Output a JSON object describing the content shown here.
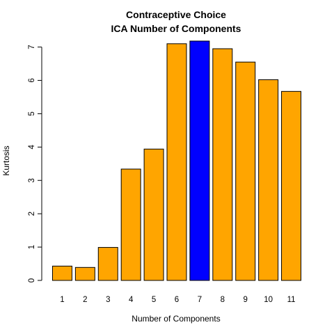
{
  "chart_data": {
    "type": "bar",
    "title": "Contraceptive Choice",
    "subtitle": "ICA Number of Components",
    "xlabel": "Number of Components",
    "ylabel": "Kurtosis",
    "categories": [
      "1",
      "2",
      "3",
      "4",
      "5",
      "6",
      "7",
      "8",
      "9",
      "10",
      "11"
    ],
    "values": [
      0.43,
      0.39,
      0.99,
      3.34,
      3.94,
      7.1,
      7.18,
      6.95,
      6.55,
      6.02,
      5.67
    ],
    "highlight_index": 6,
    "y_ticks": [
      "0",
      "1",
      "2",
      "3",
      "4",
      "5",
      "6",
      "7"
    ],
    "ylim": [
      0,
      7.18
    ],
    "grid": false,
    "colors": {
      "bar": "#FFA500",
      "highlight": "#0000FF",
      "stroke": "#000000"
    }
  }
}
